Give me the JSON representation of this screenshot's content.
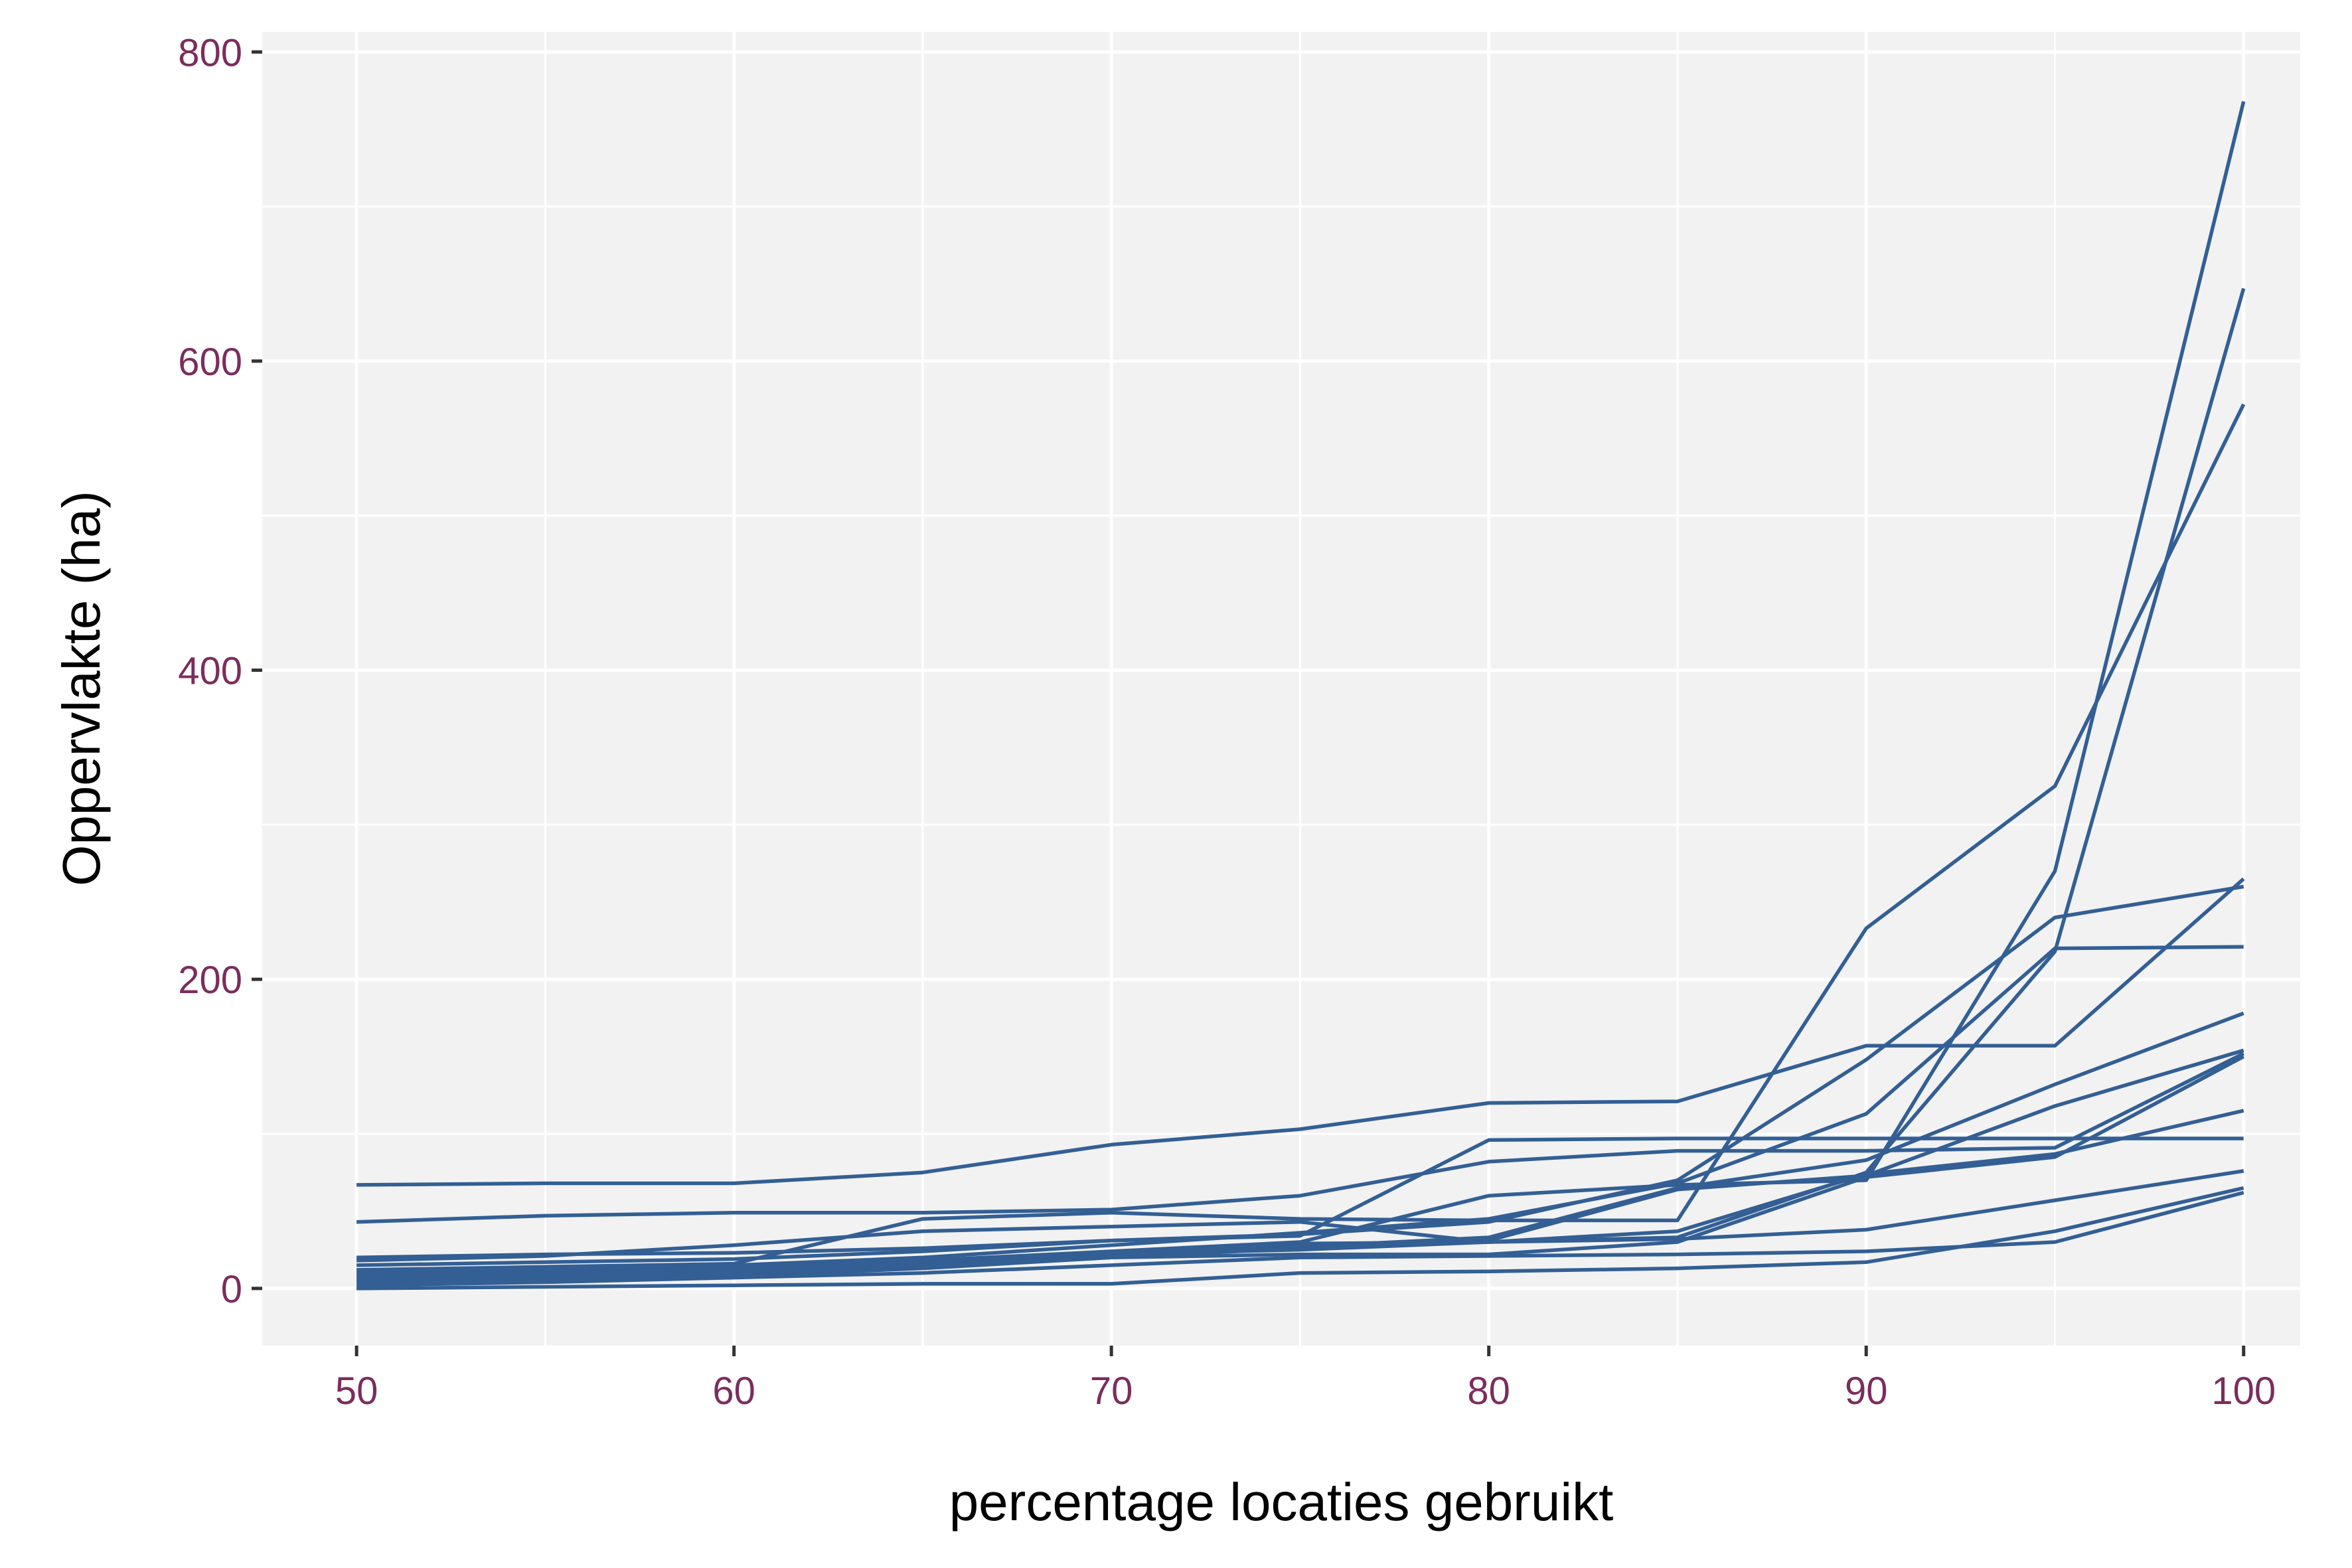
{
  "chart_data": {
    "type": "line",
    "xlabel": "percentage locaties gebruikt",
    "ylabel": "Oppervlakte (ha)",
    "xlim": [
      47.5,
      101.5
    ],
    "ylim": [
      -37,
      813
    ],
    "x_ticks": [
      50,
      60,
      70,
      80,
      90,
      100
    ],
    "y_ticks": [
      0,
      200,
      400,
      600,
      800
    ],
    "x_tick_labels": [
      "50",
      "60",
      "70",
      "80",
      "90",
      "100"
    ],
    "y_tick_labels": [
      "0",
      "200",
      "400",
      "600",
      "800"
    ],
    "grid": true,
    "legend": "none",
    "colors": {
      "line": "#335f94",
      "panel_background": "#f2f2f2",
      "grid": "#ffffff",
      "tick_label": "#7b2d5c",
      "axis_title": "#000000"
    },
    "x": [
      50,
      55,
      60,
      65,
      70,
      75,
      80,
      85,
      90,
      95,
      100
    ],
    "series": [
      {
        "values": [
          67,
          68,
          68,
          75,
          93,
          103,
          120,
          121,
          157,
          157,
          265
        ]
      },
      {
        "values": [
          43,
          47,
          49,
          49,
          51,
          60,
          82,
          89,
          89,
          91,
          152
        ]
      },
      {
        "values": [
          20,
          22,
          23,
          26,
          31,
          34,
          96,
          97,
          97,
          97,
          97
        ]
      },
      {
        "values": [
          12,
          14,
          16,
          45,
          49,
          45,
          44,
          44,
          233,
          325,
          572
        ]
      },
      {
        "values": [
          15,
          17,
          19,
          24,
          31,
          35,
          43,
          70,
          148,
          240,
          260
        ]
      },
      {
        "values": [
          9,
          11,
          13,
          18,
          24,
          30,
          60,
          67,
          70,
          270,
          768
        ]
      },
      {
        "values": [
          18,
          21,
          28,
          37,
          40,
          43,
          30,
          33,
          75,
          218,
          647
        ]
      },
      {
        "values": [
          10,
          12,
          15,
          20,
          28,
          36,
          45,
          68,
          113,
          220,
          221
        ]
      },
      {
        "values": [
          6,
          8,
          10,
          16,
          22,
          27,
          33,
          65,
          83,
          132,
          178
        ]
      },
      {
        "values": [
          4,
          6,
          8,
          13,
          20,
          26,
          31,
          64,
          73,
          118,
          154
        ]
      },
      {
        "values": [
          8,
          10,
          12,
          17,
          24,
          29,
          30,
          37,
          74,
          87,
          115
        ]
      },
      {
        "values": [
          5,
          7,
          10,
          15,
          22,
          25,
          30,
          32,
          38,
          57,
          76
        ]
      },
      {
        "values": [
          2,
          4,
          7,
          10,
          15,
          20,
          21,
          22,
          24,
          30,
          62
        ]
      },
      {
        "values": [
          0,
          1,
          2,
          3,
          3,
          10,
          11,
          13,
          17,
          37,
          65
        ]
      },
      {
        "values": [
          11,
          13,
          14,
          18,
          20,
          22,
          22,
          30,
          72,
          85,
          150
        ]
      }
    ]
  }
}
